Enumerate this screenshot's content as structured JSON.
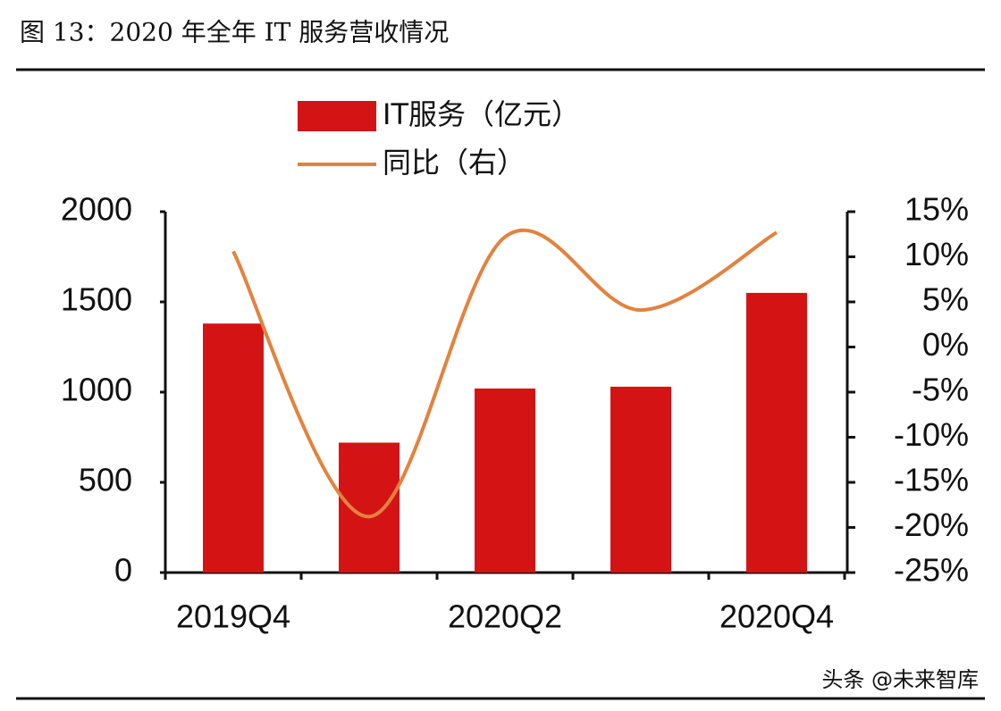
{
  "chart_data": {
    "type": "bar-line",
    "title": "图 13：2020 年全年 IT 服务营收情况",
    "categories": [
      "2019Q4",
      null,
      "2020Q2",
      null,
      "2020Q4"
    ],
    "series": [
      {
        "name": "IT服务（亿元）",
        "type": "bar",
        "color": "#d41414",
        "values": [
          1380,
          720,
          1020,
          1030,
          1550
        ]
      },
      {
        "name": "同比（右）",
        "type": "line",
        "color": "#e3823e",
        "axis": "y2",
        "values": [
          10.6,
          -18.8,
          12.2,
          4.1,
          12.7
        ]
      }
    ],
    "ylim": [
      0,
      2000
    ],
    "yticks": [
      0,
      500,
      1000,
      1500,
      2000
    ],
    "y2lim": [
      -25,
      15
    ],
    "y2ticks": [
      {
        "value": -25,
        "label": "-25%"
      },
      {
        "value": -20,
        "label": "-20%"
      },
      {
        "value": -15,
        "label": "-15%"
      },
      {
        "value": -10,
        "label": "-10%"
      },
      {
        "value": -5,
        "label": "-5%"
      },
      {
        "value": 0,
        "label": "0%"
      },
      {
        "value": 5,
        "label": "5%"
      },
      {
        "value": 10,
        "label": "10%"
      },
      {
        "value": 15,
        "label": "15%"
      }
    ],
    "watermark": "头条 @未来智库"
  }
}
